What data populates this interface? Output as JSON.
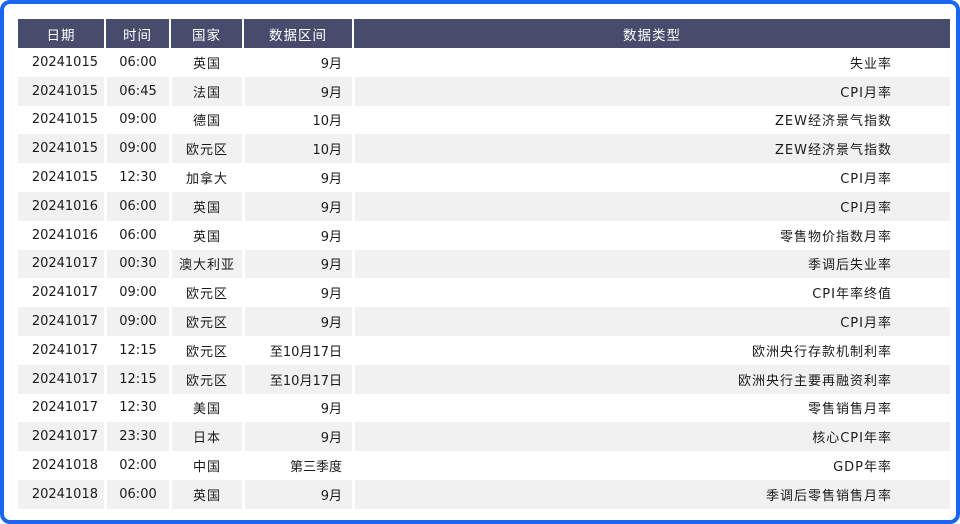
{
  "chart_data": {
    "type": "table",
    "columns": [
      "日期",
      "时间",
      "国家",
      "数据区间",
      "数据类型"
    ],
    "rows": [
      [
        "20241015",
        "06:00",
        "英国",
        "9月",
        "失业率"
      ],
      [
        "20241015",
        "06:45",
        "法国",
        "9月",
        "CPI月率"
      ],
      [
        "20241015",
        "09:00",
        "德国",
        "10月",
        "ZEW经济景气指数"
      ],
      [
        "20241015",
        "09:00",
        "欧元区",
        "10月",
        "ZEW经济景气指数"
      ],
      [
        "20241015",
        "12:30",
        "加拿大",
        "9月",
        "CPI月率"
      ],
      [
        "20241016",
        "06:00",
        "英国",
        "9月",
        "CPI月率"
      ],
      [
        "20241016",
        "06:00",
        "英国",
        "9月",
        "零售物价指数月率"
      ],
      [
        "20241017",
        "00:30",
        "澳大利亚",
        "9月",
        "季调后失业率"
      ],
      [
        "20241017",
        "09:00",
        "欧元区",
        "9月",
        "CPI年率终值"
      ],
      [
        "20241017",
        "09:00",
        "欧元区",
        "9月",
        "CPI月率"
      ],
      [
        "20241017",
        "12:15",
        "欧元区",
        "至10月17日",
        "欧洲央行存款机制利率"
      ],
      [
        "20241017",
        "12:15",
        "欧元区",
        "至10月17日",
        "欧洲央行主要再融资利率"
      ],
      [
        "20241017",
        "12:30",
        "美国",
        "9月",
        "零售销售月率"
      ],
      [
        "20241017",
        "23:30",
        "日本",
        "9月",
        "核心CPI年率"
      ],
      [
        "20241018",
        "02:00",
        "中国",
        "第三季度",
        "GDP年率"
      ],
      [
        "20241018",
        "06:00",
        "英国",
        "9月",
        "季调后零售销售月率"
      ]
    ],
    "layout": {
      "header_position": "top",
      "zebra_striping": true,
      "grid": "white-separators"
    }
  },
  "colors": {
    "frame_border": "#1a66f0",
    "header_background": "#474c6d",
    "header_text": "#ffffff",
    "row_odd_background": "#ffffff",
    "row_even_background": "#f1f1f1",
    "body_text": "#1a1a1a"
  }
}
